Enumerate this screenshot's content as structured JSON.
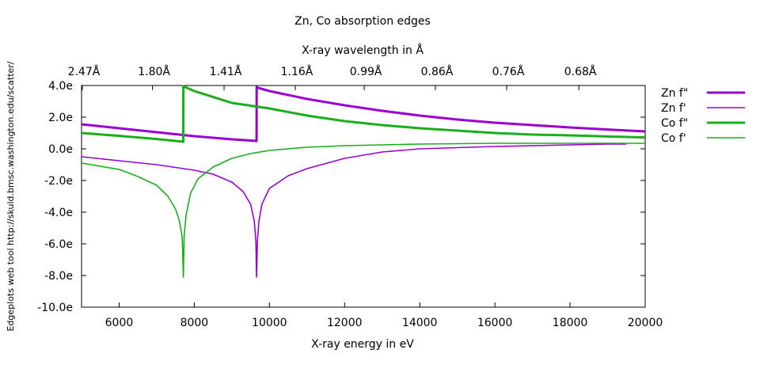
{
  "chart_data": {
    "type": "line",
    "title": "Zn, Co absorption edges",
    "xlabel": "X-ray energy in eV",
    "x2label": "X-ray wavelength in Å",
    "side_label": "Edgeplots web tool http://skuld.bmsc.washington.edu/scatter/",
    "xlim": [
      5000,
      20000
    ],
    "ylim": [
      -10,
      4
    ],
    "x_ticks": [
      6000,
      8000,
      10000,
      12000,
      14000,
      16000,
      18000,
      20000
    ],
    "x_tick_labels": [
      "6000",
      "8000",
      "10000",
      "12000",
      "14000",
      "16000",
      "18000",
      "20000"
    ],
    "y_ticks": [
      4,
      2,
      0,
      -2,
      -4,
      -6,
      -8,
      -10
    ],
    "y_tick_labels": [
      "4.0e",
      "2.0e",
      "0.0e",
      "-2.0e",
      "-4.0e",
      "-6.0e",
      "-8.0e",
      "-10.0e"
    ],
    "x2_tick_energies": [
      5020,
      6888,
      8793,
      10688,
      12524,
      14417,
      16314,
      18233
    ],
    "x2_tick_labels": [
      "2.47Å",
      "1.80Å",
      "1.41Å",
      "1.16Å",
      "0.99Å",
      "0.86Å",
      "0.76Å",
      "0.68Å"
    ],
    "grid": false,
    "legend_position": "right",
    "series": [
      {
        "name": "Zn f\"",
        "color": "#9b00d3",
        "width": "thick",
        "x": [
          5000,
          6000,
          7000,
          8000,
          9000,
          9658,
          9660,
          9700,
          10000,
          11000,
          12000,
          13000,
          14000,
          15000,
          16000,
          17000,
          18000,
          19000,
          20000
        ],
        "y": [
          1.55,
          1.3,
          1.05,
          0.8,
          0.6,
          0.5,
          3.9,
          3.85,
          3.65,
          3.15,
          2.75,
          2.4,
          2.1,
          1.85,
          1.65,
          1.5,
          1.35,
          1.22,
          1.1
        ]
      },
      {
        "name": "Zn f'",
        "color": "#9b00d3",
        "width": "thin",
        "x": [
          5000,
          6000,
          7000,
          8000,
          8500,
          9000,
          9300,
          9500,
          9600,
          9640,
          9659,
          9680,
          9720,
          9800,
          10000,
          10500,
          11000,
          12000,
          13000,
          14000,
          16000,
          18000,
          19000,
          19500
        ],
        "y": [
          -0.5,
          -0.75,
          -1.0,
          -1.35,
          -1.6,
          -2.1,
          -2.7,
          -3.5,
          -4.6,
          -5.8,
          -8.1,
          -5.9,
          -4.6,
          -3.5,
          -2.5,
          -1.7,
          -1.25,
          -0.6,
          -0.2,
          0.0,
          0.15,
          0.25,
          0.3,
          0.3
        ]
      },
      {
        "name": "Co f\"",
        "color": "#1aaf1a",
        "width": "thick",
        "x": [
          5000,
          6000,
          7000,
          7708,
          7710,
          8000,
          9000,
          10000,
          11000,
          12000,
          13000,
          14000,
          15000,
          16000,
          17000,
          18000,
          19000,
          20000
        ],
        "y": [
          1.0,
          0.82,
          0.62,
          0.45,
          3.95,
          3.65,
          2.9,
          2.55,
          2.1,
          1.75,
          1.5,
          1.3,
          1.15,
          1.0,
          0.9,
          0.85,
          0.78,
          0.72
        ]
      },
      {
        "name": "Co f'",
        "color": "#1aaf1a",
        "width": "thin",
        "x": [
          5000,
          6000,
          6500,
          7000,
          7300,
          7500,
          7600,
          7680,
          7709,
          7730,
          7780,
          7900,
          8100,
          8500,
          9000,
          9500,
          10000,
          11000,
          12000,
          13000,
          14000,
          16000,
          18000,
          20000
        ],
        "y": [
          -0.9,
          -1.3,
          -1.75,
          -2.3,
          -3.0,
          -3.8,
          -4.5,
          -5.6,
          -8.1,
          -5.5,
          -4.2,
          -2.8,
          -1.9,
          -1.15,
          -0.6,
          -0.3,
          -0.1,
          0.1,
          0.2,
          0.25,
          0.3,
          0.35,
          0.35,
          0.35
        ]
      }
    ]
  }
}
